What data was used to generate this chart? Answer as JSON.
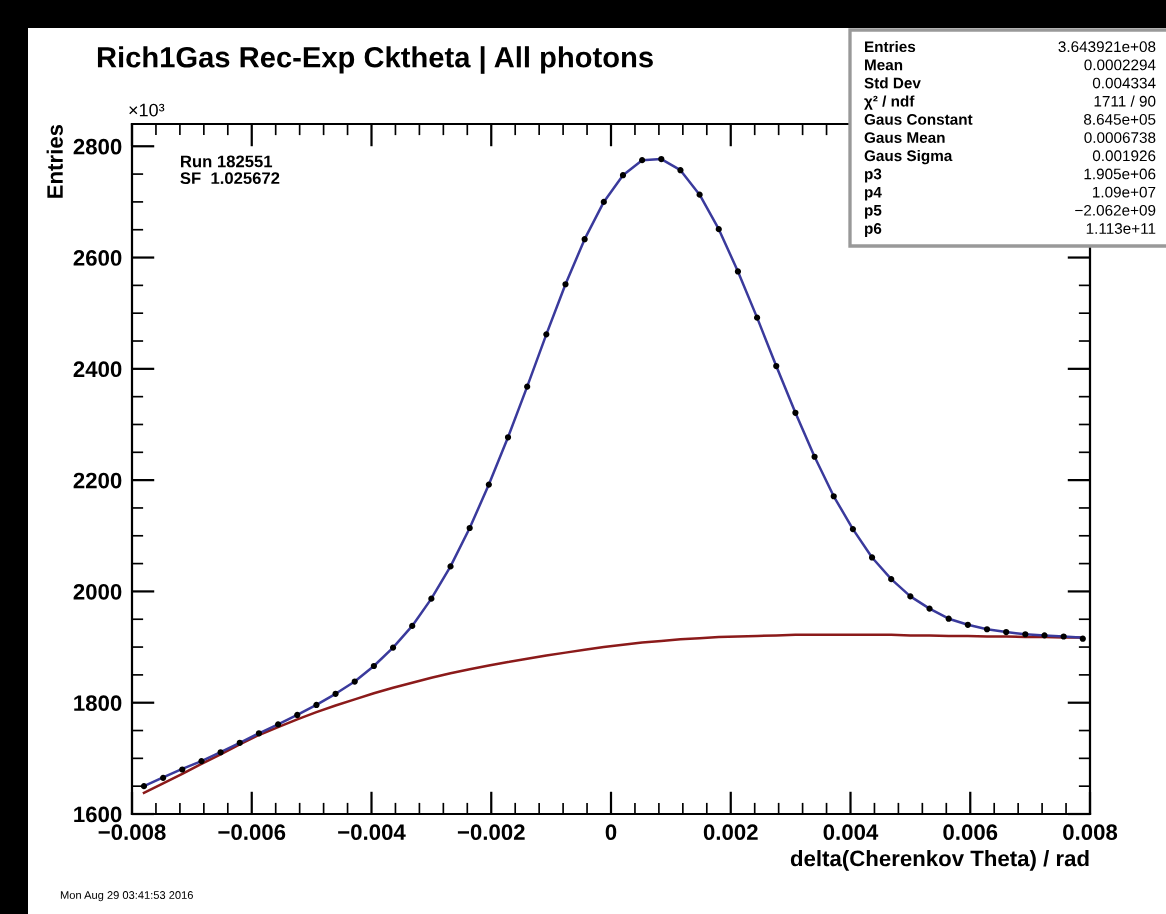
{
  "chart_data": {
    "type": "scatter",
    "title": "Rich1Gas Rec-Exp Cktheta | All photons",
    "xlabel": "delta(Cherenkov Theta) / rad",
    "ylabel": "Entries",
    "xlim": [
      -0.008,
      0.008
    ],
    "xticks": [
      {
        "value": -0.008,
        "label": "−0.008"
      },
      {
        "value": -0.006,
        "label": "−0.006"
      },
      {
        "value": -0.004,
        "label": "−0.004"
      },
      {
        "value": -0.002,
        "label": "−0.002"
      },
      0,
      0.002,
      0.004,
      0.006,
      0.008
    ],
    "ylim": [
      1600,
      2840
    ],
    "yticks": [
      1600,
      1800,
      2000,
      2200,
      2400,
      2600,
      2800
    ],
    "grid": false,
    "legend": false,
    "marker": "circle",
    "x": [
      -0.0078,
      -0.00748,
      -0.00716,
      -0.00684,
      -0.00652,
      -0.0062,
      -0.00588,
      -0.00556,
      -0.00524,
      -0.00492,
      -0.0046,
      -0.00428,
      -0.00396,
      -0.00364,
      -0.00332,
      -0.003,
      -0.00268,
      -0.00236,
      -0.00204,
      -0.00172,
      -0.0014,
      -0.00108,
      -0.00076,
      -0.00044,
      -0.00012,
      0.0002,
      0.00052,
      0.00084,
      0.00116,
      0.00148,
      0.0018,
      0.00212,
      0.00244,
      0.00276,
      0.00308,
      0.0034,
      0.00372,
      0.00404,
      0.00436,
      0.00468,
      0.005,
      0.00532,
      0.00564,
      0.00596,
      0.00628,
      0.0066,
      0.00692,
      0.00724,
      0.00756,
      0.00788
    ],
    "series": [
      {
        "color": "#000000",
        "values": [
          1650,
          1665,
          1680,
          1695,
          1711,
          1728,
          1745,
          1761,
          1778,
          1796,
          1816,
          1838,
          1866,
          1899,
          1938,
          1987,
          2045,
          2114,
          2192,
          2277,
          2368,
          2462,
          2552,
          2633,
          2700,
          2748,
          2775,
          2777,
          2757,
          2713,
          2651,
          2575,
          2492,
          2405,
          2321,
          2242,
          2171,
          2112,
          2061,
          2022,
          1991,
          1969,
          1951,
          1940,
          1932,
          1927,
          1923,
          1921,
          1919,
          1915
        ]
      },
      {
        "type": "line",
        "color": "#3a3a9c",
        "marker": "none",
        "line_style": "solid",
        "values": [
          1650,
          1666,
          1681,
          1695,
          1711,
          1728,
          1745,
          1761,
          1778,
          1796,
          1816,
          1838,
          1866,
          1899,
          1938,
          1987,
          2045,
          2114,
          2192,
          2277,
          2368,
          2462,
          2552,
          2633,
          2700,
          2748,
          2775,
          2777,
          2757,
          2713,
          2651,
          2575,
          2492,
          2405,
          2321,
          2242,
          2171,
          2112,
          2061,
          2022,
          1991,
          1969,
          1951,
          1940,
          1932,
          1927,
          1923,
          1921,
          1919,
          1917
        ]
      },
      {
        "type": "line",
        "color": "#8b1a1a",
        "marker": "none",
        "line_style": "solid",
        "values": [
          1638,
          1655,
          1672,
          1690,
          1707,
          1725,
          1742,
          1756,
          1770,
          1783,
          1795,
          1806,
          1817,
          1827,
          1836,
          1845,
          1853,
          1860,
          1867,
          1873,
          1879,
          1885,
          1890,
          1895,
          1900,
          1904,
          1908,
          1911,
          1914,
          1916,
          1918,
          1919,
          1920,
          1921,
          1922,
          1922,
          1922,
          1922,
          1922,
          1922,
          1921,
          1921,
          1920,
          1920,
          1919,
          1919,
          1918,
          1918,
          1917,
          1917
        ]
      }
    ],
    "annotations": [
      "×10³",
      "Run 182551",
      "SF  1.025672",
      "Entries",
      "3.643921e+08",
      "Mean",
      "0.0002294",
      "Std Dev",
      "0.004334",
      "χ² / ndf",
      "1711 / 90",
      "Gaus Constant",
      "8.645e+05",
      "Gaus Mean",
      "0.0006738",
      "Gaus Sigma",
      "0.001926",
      "p3",
      "1.905e+06",
      "p4",
      "1.09e+07",
      "p5",
      "−2.062e+09",
      "p6",
      "1.113e+11",
      "Mon Aug 29 03:41:53 2016"
    ]
  }
}
